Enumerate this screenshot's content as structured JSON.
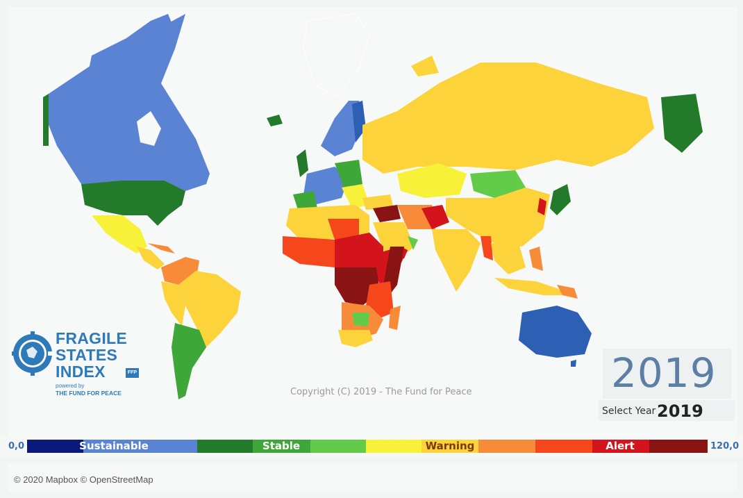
{
  "logo": {
    "line1": "FRAGILE",
    "line2": "STATES",
    "line3": "INDEX",
    "badge": "FFP",
    "powered_by": "powered by",
    "org": "THE FUND FOR PEACE"
  },
  "copyright": "Copyright (C) 2019 - The Fund for Peace",
  "year_display": "2019",
  "year_selector": {
    "label": "Select Year",
    "value": "2019"
  },
  "legend": {
    "min": "0,0",
    "max": "120,0",
    "labels": [
      "Sustainable",
      "Stable",
      "Warning",
      "Alert"
    ],
    "colors": [
      "#0b1a7a",
      "#5a83d3",
      "#237a2a",
      "#3fa63a",
      "#62cc4a",
      "#f8f13a",
      "#fcd33a",
      "#f88b3a",
      "#f5461c",
      "#d4141c",
      "#8a1313"
    ]
  },
  "attribution": "© 2020 Mapbox © OpenStreetMap",
  "map_colors": {
    "ocean": "#f7f8f8",
    "sustainable": "#5a83d3",
    "deep_blue": "#2d5fb5",
    "stable_dark": "#237a2a",
    "stable": "#3fa63a",
    "stable_light": "#62cc4a",
    "warning_light": "#f8f13a",
    "warning": "#fcd33a",
    "warning_high": "#f88b3a",
    "alert_low": "#f5461c",
    "alert": "#d4141c",
    "alert_high": "#8a1313"
  }
}
